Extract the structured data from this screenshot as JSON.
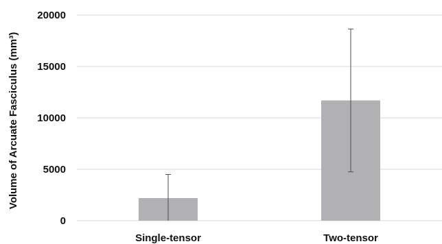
{
  "chart_data": {
    "type": "bar",
    "categories": [
      "Single-tensor",
      "Two-tensor"
    ],
    "values": [
      2200,
      11700
    ],
    "error_bars": [
      {
        "low": 0,
        "high": 4500
      },
      {
        "low": 4750,
        "high": 18650
      }
    ],
    "title": "",
    "xlabel": "",
    "ylabel": "Volume of Arcuate Fasciculus (mm³)",
    "yticks": [
      "0",
      "5000",
      "10000",
      "15000",
      "20000"
    ],
    "ylim": [
      0,
      20000
    ],
    "grid": true,
    "legend": "none",
    "colors": {
      "bar": "#b1b1b3",
      "error_bar": "#4d4d4d",
      "grid": "#d9d9d9"
    }
  }
}
